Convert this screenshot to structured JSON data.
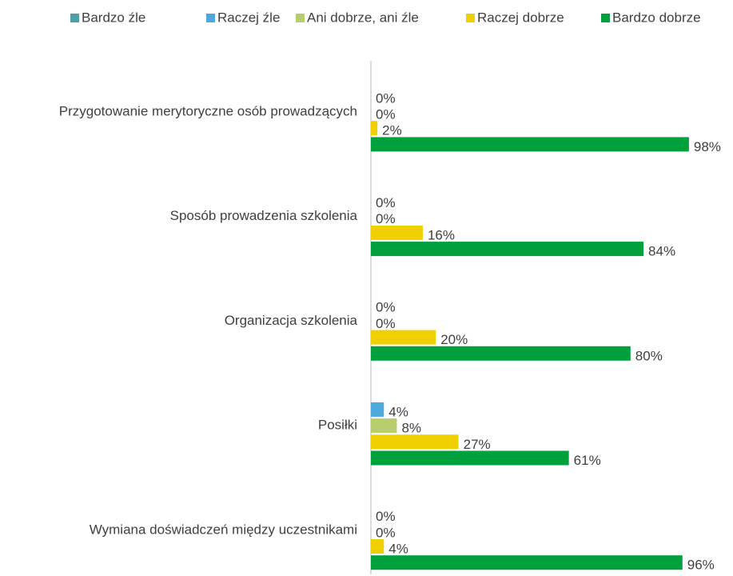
{
  "chart_data": {
    "type": "bar",
    "orientation": "horizontal",
    "categories": [
      "Przygotowanie merytoryczne osób prowadzących",
      "Sposób prowadzenia szkolenia",
      "Organizacja szkolenia",
      "Posiłki",
      "Wymiana doświadczeń między uczestnikami"
    ],
    "xlim": [
      0,
      100
    ],
    "legend": "top",
    "series": [
      {
        "name": "Bardzo źle",
        "color": "#4f9fa8",
        "values": [
          0,
          0,
          0,
          0,
          0
        ]
      },
      {
        "name": "Raczej źle",
        "color": "#4ea8dc",
        "values": [
          0,
          0,
          0,
          4,
          0
        ],
        "value_labels": [
          "0%",
          "0%",
          "0%",
          "4%",
          "0%"
        ]
      },
      {
        "name": "Ani dobrze, ani źle",
        "color": "#b6cf6c",
        "values": [
          0,
          0,
          0,
          8,
          0
        ],
        "value_labels": [
          "0%",
          "0%",
          "0%",
          "8%",
          "0%"
        ]
      },
      {
        "name": "Raczej dobrze",
        "color": "#f0d000",
        "values": [
          2,
          16,
          20,
          27,
          4
        ],
        "value_labels": [
          "2%",
          "16%",
          "20%",
          "27%",
          "4%"
        ]
      },
      {
        "name": "Bardzo dobrze",
        "color": "#00a03c",
        "values": [
          98,
          84,
          80,
          61,
          96
        ],
        "value_labels": [
          "98%",
          "84%",
          "80%",
          "61%",
          "96%"
        ]
      }
    ]
  }
}
